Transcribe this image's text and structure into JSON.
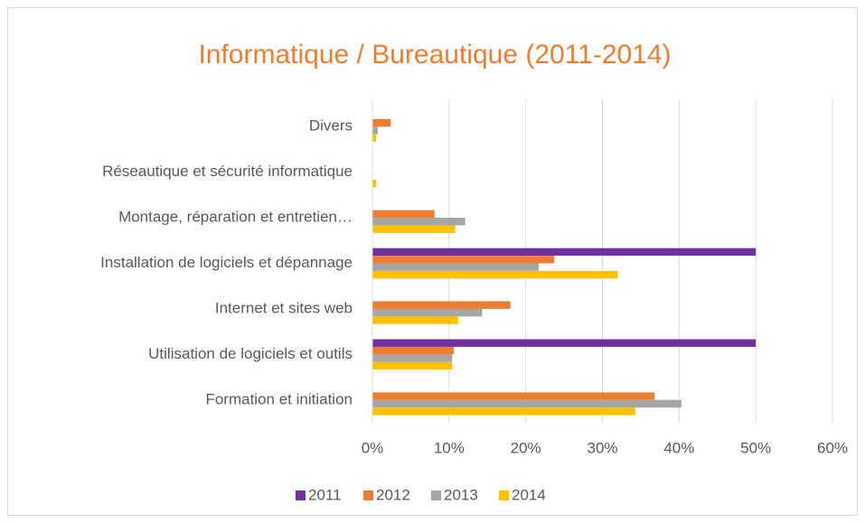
{
  "chart_data": {
    "type": "hbar",
    "title": "Informatique / Bureautique (2011-2014)",
    "categories": [
      "Divers",
      "Réseautique et sécurité informatique",
      "Montage, réparation et entretien…",
      "Installation de logiciels et dépannage",
      "Internet et sites web",
      "Utilisation de logiciels et outils",
      "Formation et initiation"
    ],
    "series": [
      {
        "name": "2011",
        "color": "#7030a0",
        "values": [
          0,
          0,
          0,
          50,
          0,
          50,
          0
        ]
      },
      {
        "name": "2012",
        "color": "#ed7d31",
        "values": [
          2.4,
          0,
          8.1,
          23.7,
          18.0,
          10.6,
          36.8
        ]
      },
      {
        "name": "2013",
        "color": "#a5a5a5",
        "values": [
          0.7,
          0,
          12.1,
          21.7,
          14.3,
          10.4,
          40.3
        ]
      },
      {
        "name": "2014",
        "color": "#ffc000",
        "values": [
          0.5,
          0.5,
          10.8,
          32.0,
          11.2,
          10.4,
          34.3
        ]
      }
    ],
    "xlim": [
      0,
      60
    ],
    "xticks": [
      {
        "value": 0,
        "label": "0%"
      },
      {
        "value": 10,
        "label": "10%"
      },
      {
        "value": 20,
        "label": "20%"
      },
      {
        "value": 30,
        "label": "30%"
      },
      {
        "value": 40,
        "label": "40%"
      },
      {
        "value": 50,
        "label": "50%"
      },
      {
        "value": 60,
        "label": "60%"
      }
    ],
    "grid": true,
    "legend": "bottom"
  }
}
